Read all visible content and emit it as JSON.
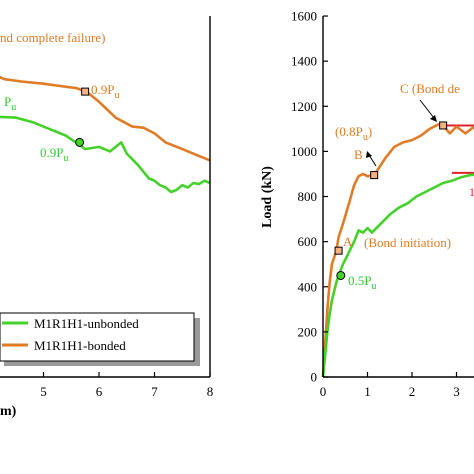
{
  "colors": {
    "unbonded": "#44d12a",
    "bonded": "#e07b26",
    "marker_fill_orange": "#f4b183",
    "red": "#e0202a",
    "axis": "#000000"
  },
  "chart_data": [
    {
      "type": "line",
      "panel": "left (cropped)",
      "xlabel_fragment": "m)",
      "xlim": [
        3.5,
        8
      ],
      "xticks": [
        5,
        6,
        7,
        8
      ],
      "ylim": [
        0,
        1600
      ],
      "legend": {
        "placement": "bottom-left",
        "entries": [
          "M1R1H1-unbonded",
          "M1R1H1-bonded"
        ]
      },
      "series": [
        {
          "name": "M1R1H1-unbonded",
          "color": "#44d12a",
          "x": [
            3.5,
            4.0,
            4.5,
            4.8,
            5.0,
            5.2,
            5.4,
            5.55,
            5.6,
            5.75,
            6.0,
            6.2,
            6.4,
            6.5,
            6.7,
            6.9,
            7.0,
            7.1,
            7.2,
            7.3,
            7.4,
            7.5,
            7.6,
            7.7,
            7.8,
            7.9,
            8.0
          ],
          "y": [
            1155,
            1155,
            1150,
            1130,
            1110,
            1090,
            1070,
            1045,
            1040,
            1010,
            1020,
            1000,
            1040,
            990,
            940,
            880,
            870,
            850,
            840,
            820,
            830,
            850,
            840,
            860,
            855,
            870,
            860
          ]
        },
        {
          "name": "M1R1H1-bonded",
          "color": "#e07b26",
          "x": [
            3.5,
            4.0,
            4.3,
            4.6,
            5.0,
            5.3,
            5.6,
            5.8,
            6.0,
            6.3,
            6.6,
            6.8,
            7.0,
            7.2,
            7.5,
            7.8,
            8.0
          ],
          "y": [
            1355,
            1350,
            1320,
            1310,
            1300,
            1290,
            1280,
            1260,
            1220,
            1150,
            1110,
            1105,
            1080,
            1040,
            1010,
            980,
            960
          ]
        }
      ],
      "annotations": [
        {
          "text": "nd complete failure)",
          "color": "#e07b26"
        },
        {
          "text": "0.9P",
          "sub": "u",
          "x": 5.75,
          "y": 1265,
          "color": "#e07b26",
          "marker": "square"
        },
        {
          "text": "P",
          "sub": "u",
          "color": "#33cc33"
        },
        {
          "text": "0.9P",
          "sub": "u",
          "x": 5.65,
          "y": 1040,
          "color": "#33cc33",
          "marker": "circle"
        }
      ]
    },
    {
      "type": "line",
      "panel": "right (cropped)",
      "ylabel": "Load (kN)",
      "xlim": [
        0,
        4
      ],
      "xticks": [
        0,
        1,
        2,
        3
      ],
      "ylim": [
        0,
        1600
      ],
      "yticks": [
        0,
        200,
        400,
        600,
        800,
        1000,
        1200,
        1400,
        1600
      ],
      "series": [
        {
          "name": "M1R1H1-bonded",
          "color": "#e07b26",
          "x": [
            0,
            0.05,
            0.1,
            0.15,
            0.2,
            0.3,
            0.35,
            0.45,
            0.6,
            0.7,
            0.8,
            0.9,
            1.0,
            1.1,
            1.2,
            1.4,
            1.6,
            1.8,
            2.0,
            2.2,
            2.4,
            2.6,
            2.7,
            2.85,
            3.0,
            3.2,
            3.4,
            3.6
          ],
          "y": [
            0,
            150,
            300,
            420,
            500,
            560,
            620,
            680,
            780,
            850,
            890,
            900,
            890,
            895,
            910,
            970,
            1020,
            1040,
            1050,
            1070,
            1100,
            1120,
            1115,
            1080,
            1110,
            1080,
            1110,
            1100
          ]
        },
        {
          "name": "M1R1H1-unbonded",
          "color": "#44d12a",
          "x": [
            0,
            0.05,
            0.1,
            0.15,
            0.2,
            0.3,
            0.35,
            0.45,
            0.55,
            0.7,
            0.8,
            0.9,
            1.0,
            1.1,
            1.3,
            1.5,
            1.7,
            1.9,
            2.1,
            2.3,
            2.5,
            2.7,
            2.9,
            3.1,
            3.3,
            3.6
          ],
          "y": [
            0,
            100,
            200,
            280,
            340,
            420,
            450,
            500,
            540,
            600,
            650,
            640,
            660,
            640,
            680,
            720,
            750,
            770,
            800,
            820,
            840,
            860,
            870,
            885,
            895,
            900
          ]
        }
      ],
      "markers": [
        {
          "series": "bonded",
          "x": 0.35,
          "y": 560,
          "shape": "square",
          "label": "A"
        },
        {
          "series": "bonded",
          "x": 1.15,
          "y": 895,
          "shape": "square",
          "label": "B"
        },
        {
          "series": "bonded",
          "x": 2.7,
          "y": 1115,
          "shape": "square",
          "label": "C"
        },
        {
          "series": "unbonded",
          "x": 0.4,
          "y": 450,
          "shape": "circle"
        }
      ],
      "reference_lines": [
        {
          "color": "#e0202a",
          "y": 1115,
          "x0": 2.7,
          "x1": 4
        },
        {
          "color": "#e0202a",
          "y": 905,
          "x0": 2.9,
          "x1": 4
        }
      ],
      "annotations": [
        {
          "text": "C (Bond de",
          "color": "#e07b26"
        },
        {
          "text": "(0.8P",
          "sub": "u",
          "after": ")",
          "color": "#e07b26"
        },
        {
          "text": "B",
          "color": "#e07b26"
        },
        {
          "text": "A",
          "color": "#e07b26"
        },
        {
          "text": "(Bond initiation)",
          "color": "#e07b26"
        },
        {
          "text": "0.5P",
          "sub": "u",
          "color": "#33cc33"
        },
        {
          "text": "1",
          "color": "#e0202a"
        }
      ]
    }
  ]
}
